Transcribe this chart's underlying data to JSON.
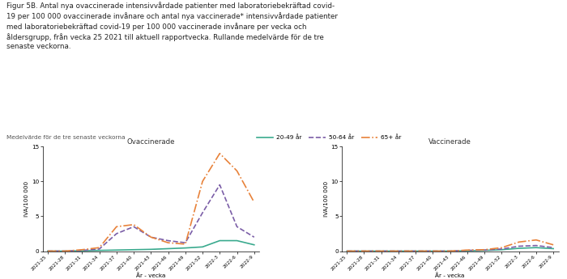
{
  "title_text": "Figur 5B. Antal nya ovaccinerade intensivvårdade patienter med laboratoriebekräftad covid-\n19 per 100 000 ovaccinerade invånare och antal nya vaccinerade* intensivvårdade patienter\nmed laboratoriebekräftad covid-19 per 100 000 vaccinerade invånare per vecka och\nåldersgrupp, från vecka 25 2021 till aktuell rapportvecka. Rullande medelvärde för de tre\nsenaste veckorna.",
  "subtitle": "Medelvärde för de tre senaste veckorna",
  "ylabel": "IVA/100 000",
  "xlabel": "År - vecka",
  "ylim": [
    0,
    15
  ],
  "left_title": "Ovaccinerade",
  "right_title": "Vaccinerade",
  "legend_labels": [
    "20-49 år",
    "50-64 år",
    "65+ år"
  ],
  "colors": [
    "#3aaa8e",
    "#7b5ea7",
    "#e8823a"
  ],
  "x_labels": [
    "2021-25",
    "2021-28",
    "2021-31",
    "2021-34",
    "2021-37",
    "2021-40",
    "2021-43",
    "2021-46",
    "2021-49",
    "2021-52",
    "2022-3",
    "2022-6",
    "2022-9"
  ],
  "unvacc_20_49": [
    0,
    0,
    0.05,
    0.1,
    0.15,
    0.2,
    0.25,
    0.35,
    0.45,
    0.6,
    1.5,
    1.5,
    0.9
  ],
  "unvacc_50_64": [
    0,
    0,
    0.1,
    0.3,
    2.5,
    3.5,
    2.0,
    1.5,
    1.2,
    5.5,
    9.5,
    3.5,
    2.0
  ],
  "unvacc_65p": [
    0,
    0,
    0.2,
    0.5,
    3.5,
    3.8,
    2.0,
    1.2,
    1.0,
    10.0,
    14.0,
    11.5,
    7.0
  ],
  "vacc_20_49": [
    0,
    0,
    0,
    0,
    0,
    0,
    0,
    0.05,
    0.1,
    0.2,
    0.4,
    0.5,
    0.35
  ],
  "vacc_50_64": [
    0,
    0,
    0,
    0,
    0,
    0,
    0,
    0.1,
    0.15,
    0.3,
    0.7,
    0.8,
    0.5
  ],
  "vacc_65p": [
    0,
    0,
    0,
    0,
    0,
    0,
    0,
    0.15,
    0.2,
    0.5,
    1.3,
    1.6,
    0.9
  ]
}
